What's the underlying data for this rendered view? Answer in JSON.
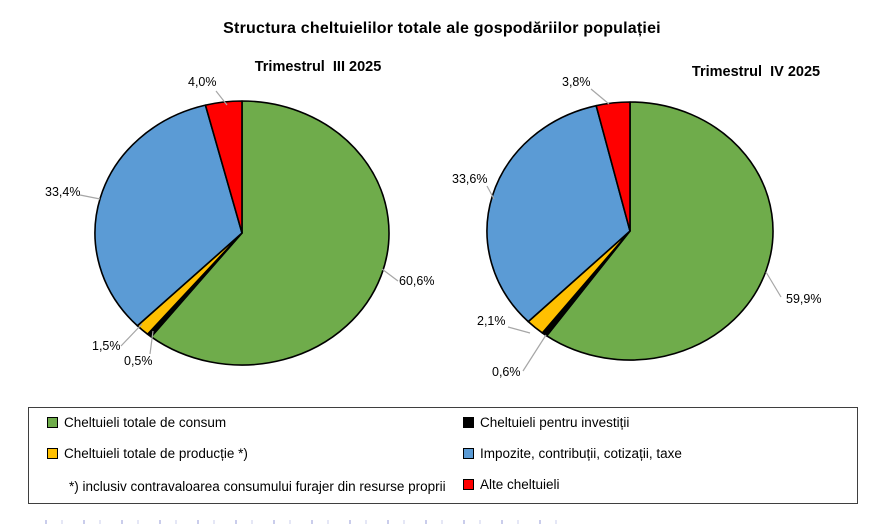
{
  "title": "Structura cheltuielilor totale ale gospodăriilor populației",
  "chart_data": [
    {
      "type": "pie",
      "title": "Trimestrul  III 2025",
      "unit": "%",
      "start_angle_deg": 0,
      "direction": "clockwise",
      "slices": [
        {
          "label": "Cheltuieli totale de consum",
          "value": 60.6,
          "display": "60,6%",
          "color": "#6FAC4B"
        },
        {
          "label": "Cheltuieli pentru investiții",
          "value": 0.5,
          "display": "0,5%",
          "color": "#000000"
        },
        {
          "label": "Cheltuieli totale de producție *)",
          "value": 1.5,
          "display": "1,5%",
          "color": "#FFC000"
        },
        {
          "label": "Impozite, contribuții, cotizații, taxe",
          "value": 33.4,
          "display": "33,4%",
          "color": "#5B9BD5"
        },
        {
          "label": "Alte cheltuieli",
          "value": 4.0,
          "display": "4,0%",
          "color": "#FF0000"
        }
      ]
    },
    {
      "type": "pie",
      "title": "Trimestrul  IV 2025",
      "unit": "%",
      "start_angle_deg": 0,
      "direction": "clockwise",
      "slices": [
        {
          "label": "Cheltuieli totale de consum",
          "value": 59.9,
          "display": "59,9%",
          "color": "#6FAC4B"
        },
        {
          "label": "Cheltuieli pentru investiții",
          "value": 0.6,
          "display": "0,6%",
          "color": "#000000"
        },
        {
          "label": "Cheltuieli totale de producție *)",
          "value": 2.1,
          "display": "2,1%",
          "color": "#FFC000"
        },
        {
          "label": "Impozite, contribuții, cotizații, taxe",
          "value": 33.6,
          "display": "33,6%",
          "color": "#5B9BD5"
        },
        {
          "label": "Alte cheltuieli",
          "value": 3.8,
          "display": "3,8%",
          "color": "#FF0000"
        }
      ]
    }
  ],
  "legend": {
    "items": [
      {
        "label": "Cheltuieli totale de consum",
        "color": "#6FAC4B"
      },
      {
        "label": "Cheltuieli pentru investiții",
        "color": "#000000"
      },
      {
        "label": "Cheltuieli totale de producție *)",
        "color": "#FFC000"
      },
      {
        "label": "Impozite, contribuții, cotizații, taxe",
        "color": "#5B9BD5"
      },
      {
        "label": "*) inclusiv contravaloarea consumului furajer din resurse proprii",
        "color": null
      },
      {
        "label": "Alte cheltuieli",
        "color": "#FF0000"
      }
    ]
  }
}
